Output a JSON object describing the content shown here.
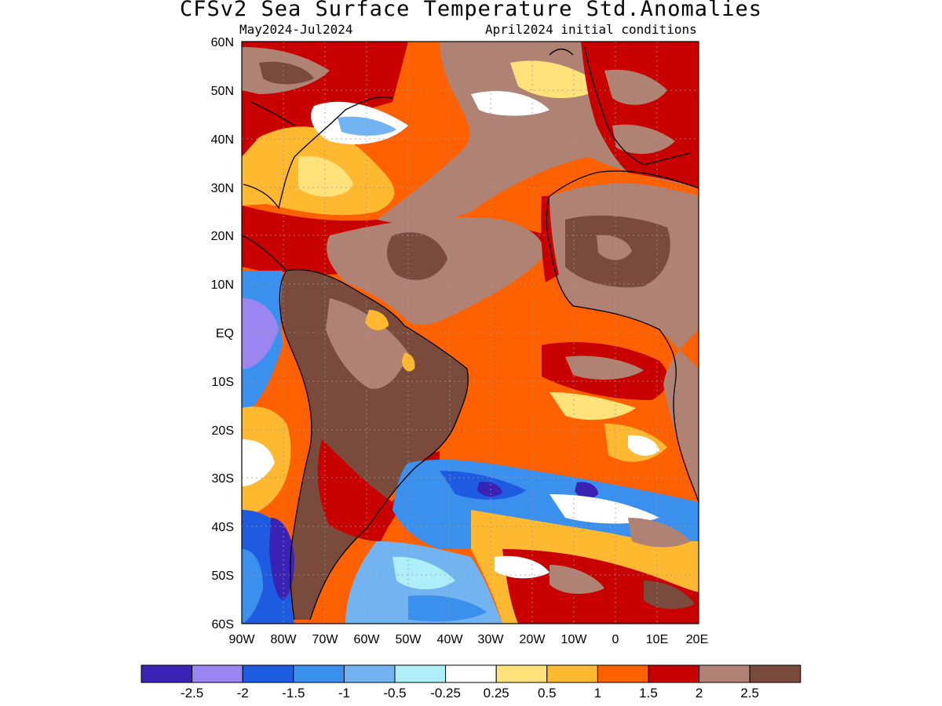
{
  "header": {
    "title": "CFSv2 Sea Surface Temperature Std.Anomalies",
    "period": "May2024-Jul2024",
    "initial_conditions": "April2024 initial conditions"
  },
  "map": {
    "lat_labels": [
      "60N",
      "50N",
      "40N",
      "30N",
      "20N",
      "10N",
      "EQ",
      "10S",
      "20S",
      "30S",
      "40S",
      "50S",
      "60S"
    ],
    "lon_labels": [
      "90W",
      "80W",
      "70W",
      "60W",
      "50W",
      "40W",
      "30W",
      "20W",
      "10W",
      "0",
      "10E",
      "20E"
    ],
    "lat_range": [
      -60,
      60
    ],
    "lon_range": [
      -90,
      20
    ],
    "grid": "dotted"
  },
  "legend": {
    "colors": [
      "#3a22b4",
      "#9b85f0",
      "#1f5be0",
      "#3b90ee",
      "#72b4f2",
      "#aeeef8",
      "#ffffff",
      "#ffe27a",
      "#ffb931",
      "#ff6000",
      "#c90000",
      "#b08274",
      "#7a4a3d"
    ],
    "labels": [
      "-2.5",
      "-2",
      "-1.5",
      "-1",
      "-0.5",
      "-0.25",
      "0.25",
      "0.5",
      "1",
      "1.5",
      "2",
      "2.5"
    ]
  }
}
